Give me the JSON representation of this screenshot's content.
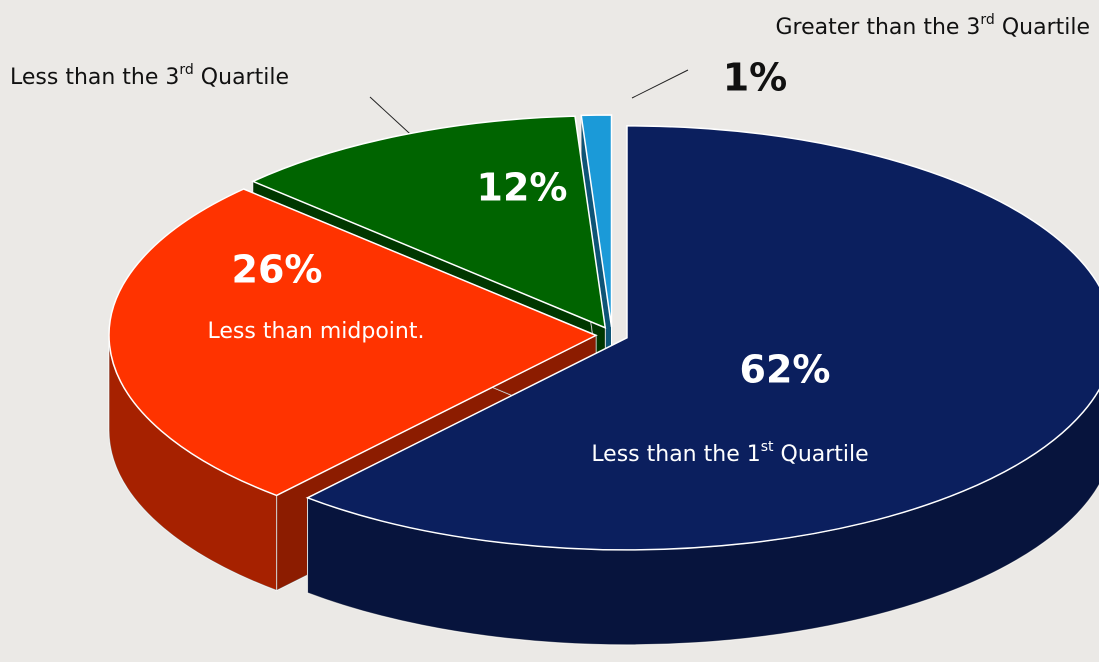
{
  "chart_data": {
    "type": "pie",
    "categories": [
      "Less than the 1st Quartile",
      "Less than midpoint.",
      "Less than the 3rd Quartile",
      "Greater than the 3rd Quartile"
    ],
    "values": [
      62,
      26,
      12,
      1
    ],
    "value_labels": [
      "62%",
      "26%",
      "12%",
      "1%"
    ],
    "colors": [
      "#0b1f5e",
      "#ff3300",
      "#006400",
      "#1b9ad8"
    ]
  }
}
